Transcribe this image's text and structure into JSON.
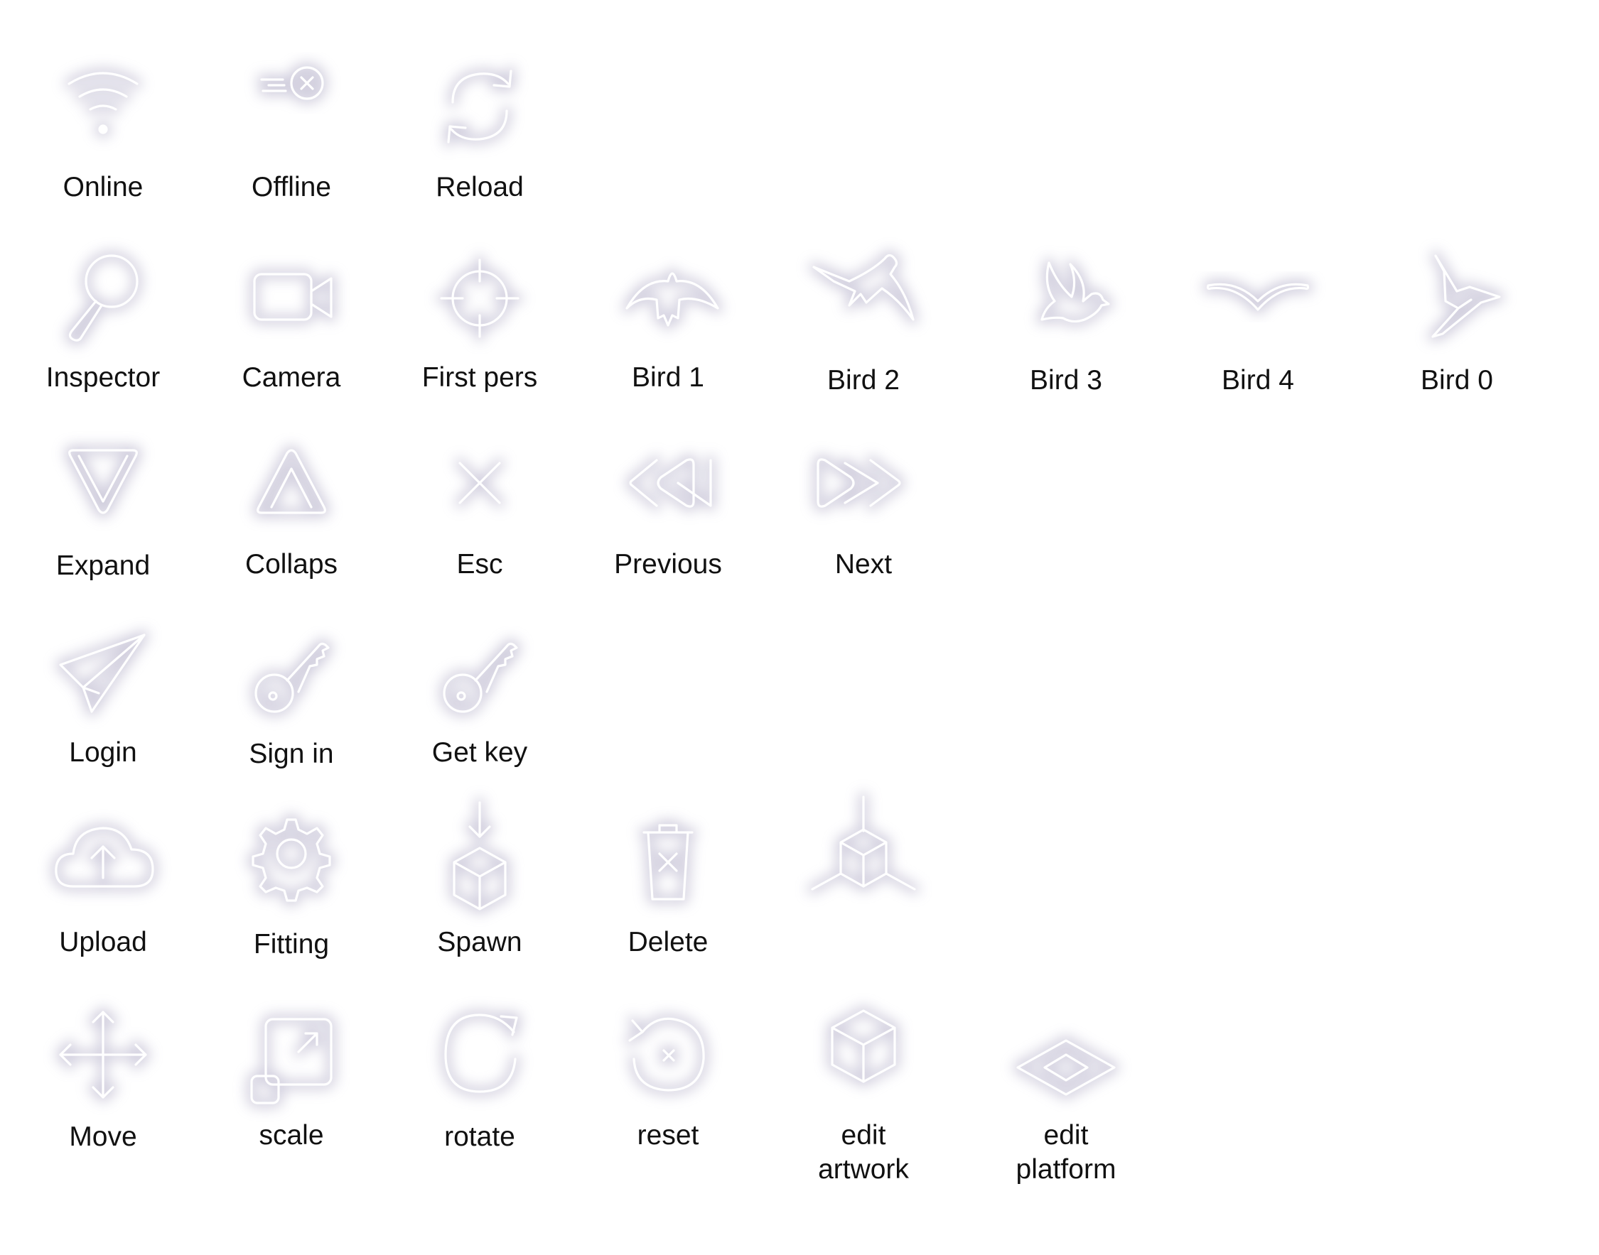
{
  "icons": [
    {
      "name": "online-icon",
      "label": "Online"
    },
    {
      "name": "offline-icon",
      "label": "Offline"
    },
    {
      "name": "reload-icon",
      "label": "Reload"
    },
    {
      "name": "inspector-icon",
      "label": "Inspector"
    },
    {
      "name": "camera-icon",
      "label": "Camera"
    },
    {
      "name": "first-pers-icon",
      "label": "First pers"
    },
    {
      "name": "bird-1-icon",
      "label": "Bird 1"
    },
    {
      "name": "bird-2-icon",
      "label": "Bird 2"
    },
    {
      "name": "bird-3-icon",
      "label": "Bird 3"
    },
    {
      "name": "bird-4-icon",
      "label": "Bird 4"
    },
    {
      "name": "bird-0-icon",
      "label": "Bird 0"
    },
    {
      "name": "expand-icon",
      "label": "Expand"
    },
    {
      "name": "collaps-icon",
      "label": "Collaps"
    },
    {
      "name": "esc-icon",
      "label": "Esc"
    },
    {
      "name": "previous-icon",
      "label": "Previous"
    },
    {
      "name": "next-icon",
      "label": "Next"
    },
    {
      "name": "login-icon",
      "label": "Login"
    },
    {
      "name": "sign-in-icon",
      "label": "Sign in"
    },
    {
      "name": "get-key-icon",
      "label": "Get key"
    },
    {
      "name": "upload-icon",
      "label": "Upload"
    },
    {
      "name": "fitting-icon",
      "label": "Fitting"
    },
    {
      "name": "spawn-icon",
      "label": "Spawn"
    },
    {
      "name": "delete-icon",
      "label": "Delete"
    },
    {
      "name": "axes-cube-icon",
      "label": ""
    },
    {
      "name": "move-icon",
      "label": "Move"
    },
    {
      "name": "scale-icon",
      "label": "scale"
    },
    {
      "name": "rotate-icon",
      "label": "rotate"
    },
    {
      "name": "reset-icon",
      "label": "reset"
    },
    {
      "name": "edit-artwork-icon",
      "label": "edit\nartwork"
    },
    {
      "name": "edit-platform-icon",
      "label": "edit\nplatform"
    }
  ],
  "colors": {
    "icon_stroke": "#ffffff",
    "icon_glow": "#c9c6d8",
    "label_text": "#111111",
    "background": "#ffffff"
  }
}
